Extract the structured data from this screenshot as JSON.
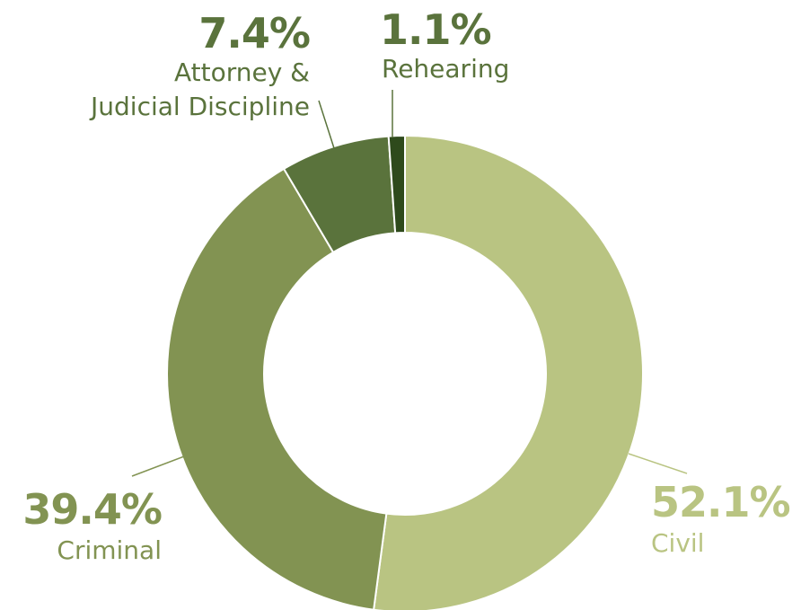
{
  "chart_data": {
    "type": "pie",
    "categories": [
      "Civil",
      "Criminal",
      "Attorney &\nJudicial Discipline",
      "Rehearing"
    ],
    "values": [
      52.1,
      39.4,
      7.4,
      1.1
    ],
    "value_labels": [
      "52.1%",
      "39.4%",
      "7.4%",
      "1.1%"
    ],
    "colors": [
      "#b9c482",
      "#829352",
      "#5a733c",
      "#2e4a1c"
    ],
    "donut": true
  }
}
